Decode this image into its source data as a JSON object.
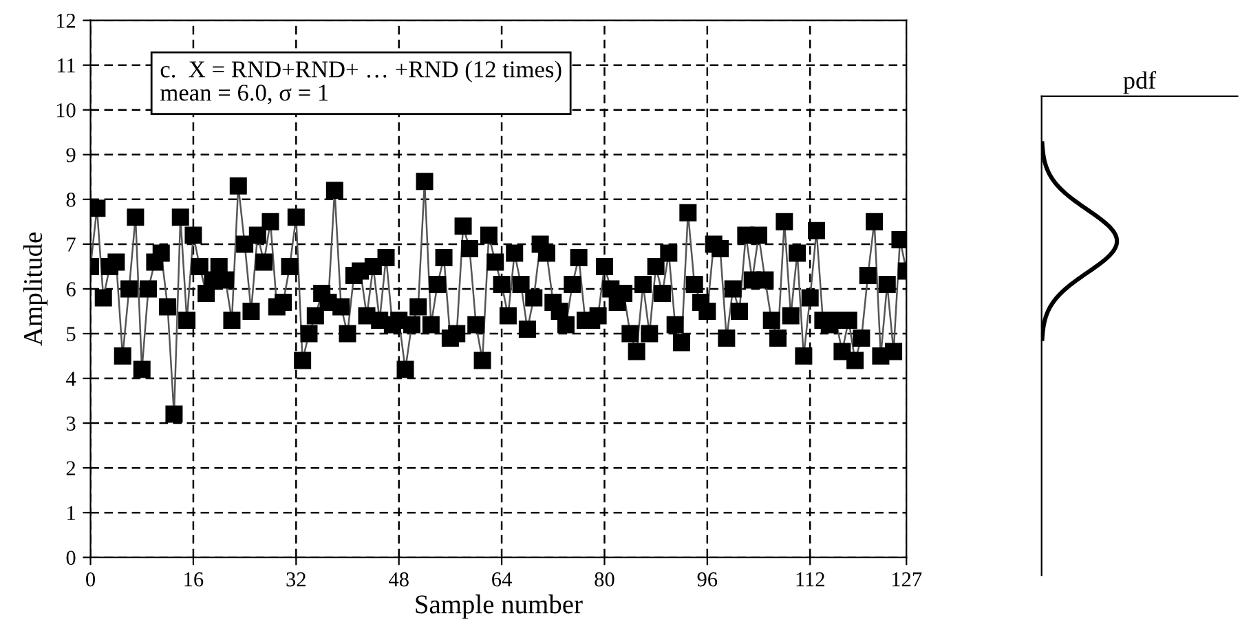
{
  "chart_data": [
    {
      "type": "line",
      "xlabel": "Sample number",
      "ylabel": "Amplitude",
      "annotations": [
        "c.  X = RND+RND+ … +RND (12 times)",
        "mean = 6.0, σ = 1"
      ],
      "x": [
        0,
        1,
        2,
        3,
        4,
        5,
        6,
        7,
        8,
        9,
        10,
        11,
        12,
        13,
        14,
        15,
        16,
        17,
        18,
        19,
        20,
        21,
        22,
        23,
        24,
        25,
        26,
        27,
        28,
        29,
        30,
        31,
        32,
        33,
        34,
        35,
        36,
        37,
        38,
        39,
        40,
        41,
        42,
        43,
        44,
        45,
        46,
        47,
        48,
        49,
        50,
        51,
        52,
        53,
        54,
        55,
        56,
        57,
        58,
        59,
        60,
        61,
        62,
        63,
        64,
        65,
        66,
        67,
        68,
        69,
        70,
        71,
        72,
        73,
        74,
        75,
        76,
        77,
        78,
        79,
        80,
        81,
        82,
        83,
        84,
        85,
        86,
        87,
        88,
        89,
        90,
        91,
        92,
        93,
        94,
        95,
        96,
        97,
        98,
        99,
        100,
        101,
        102,
        103,
        104,
        105,
        106,
        107,
        108,
        109,
        110,
        111,
        112,
        113,
        114,
        115,
        116,
        117,
        118,
        119,
        120,
        121,
        122,
        123,
        124,
        125,
        126,
        127
      ],
      "series": [
        {
          "color": "#000000",
          "values": [
            6.5,
            7.8,
            5.8,
            6.5,
            6.6,
            4.5,
            6.0,
            7.6,
            4.2,
            6.0,
            6.6,
            6.8,
            5.6,
            3.2,
            7.6,
            5.3,
            7.2,
            6.5,
            5.9,
            6.2,
            6.5,
            6.2,
            5.3,
            8.3,
            7.0,
            5.5,
            7.2,
            6.6,
            7.5,
            5.6,
            5.7,
            6.5,
            7.6,
            4.4,
            5.0,
            5.4,
            5.9,
            5.7,
            8.2,
            5.6,
            5.0,
            6.3,
            6.4,
            5.4,
            6.5,
            5.3,
            6.7,
            5.2,
            5.3,
            4.2,
            5.2,
            5.6,
            8.4,
            5.2,
            6.1,
            6.7,
            4.9,
            5.0,
            7.4,
            6.9,
            5.2,
            4.4,
            7.2,
            6.6,
            6.1,
            5.4,
            6.8,
            6.1,
            5.1,
            5.8,
            7.0,
            6.8,
            5.7,
            5.5,
            5.2,
            6.1,
            6.7,
            5.3,
            5.3,
            5.4,
            6.5,
            6.0,
            5.7,
            5.9,
            5.0,
            4.6,
            6.1,
            5.0,
            6.5,
            5.9,
            6.8,
            5.2,
            4.8,
            7.7,
            6.1,
            5.7,
            5.5,
            7.0,
            6.9,
            4.9,
            6.0,
            5.5,
            7.2,
            6.2,
            7.2,
            6.2,
            5.3,
            4.9,
            7.5,
            5.4,
            6.8,
            4.5,
            5.8,
            7.3,
            5.3,
            5.2,
            5.3,
            4.6,
            5.3,
            4.4,
            4.9,
            6.3,
            7.5,
            4.5,
            6.1,
            4.6,
            7.1,
            6.4
          ]
        }
      ],
      "xlim": [
        0,
        127
      ],
      "ylim": [
        0,
        12
      ],
      "xticks": [
        0,
        16,
        32,
        48,
        64,
        80,
        96,
        112,
        127
      ],
      "yticks": [
        0,
        1,
        2,
        3,
        4,
        5,
        6,
        7,
        8,
        9,
        10,
        11,
        12
      ],
      "grid": true,
      "marker": "square",
      "line_style": "solid"
    },
    {
      "type": "other",
      "title": "pdf"
    }
  ]
}
